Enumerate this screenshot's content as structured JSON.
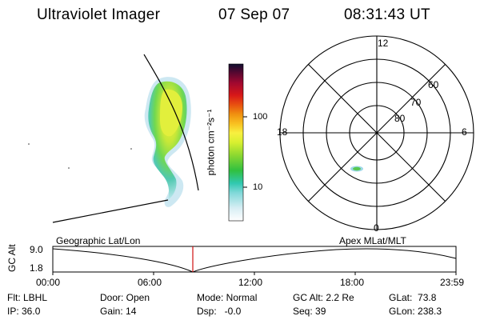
{
  "header": {
    "instrument": "Ultraviolet Imager",
    "date": "07 Sep 07",
    "time": "08:31:43 UT"
  },
  "colorbar": {
    "unit_label": "photon cm⁻²s⁻¹",
    "ticks": [
      "100",
      "10"
    ]
  },
  "polar": {
    "lat_labels": [
      "60",
      "70",
      "80"
    ],
    "mlt_labels": {
      "top": "12",
      "left": "18",
      "right": "6",
      "bottom": "0"
    }
  },
  "timeline": {
    "left_title": "Geographic Lat/Lon",
    "right_title": "Apex MLat/MLT",
    "axis_label": "GC Alt",
    "y_ticks": [
      "9.0",
      "1.8"
    ],
    "x_ticks": [
      "00:00",
      "06:00",
      "12:00",
      "18:00",
      "23:59"
    ]
  },
  "info": {
    "filter": "Flt: LBHL",
    "ip": "IP: 36.0",
    "door": "Door: Open",
    "gain": "Gain: 14",
    "mode": "Mode: Normal",
    "dsp": "Dsp:   -0.0",
    "gc_alt": "GC Alt: 2.2 Re",
    "seq": "Seq: 39",
    "glat": "GLat:  73.8",
    "glon": "GLon: 238.3"
  },
  "colors": {
    "marker": "#d01010"
  }
}
